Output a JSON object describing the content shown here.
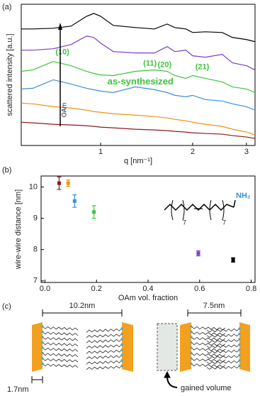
{
  "panels": {
    "a": "(a)",
    "b": "(b)",
    "c": "(c)"
  },
  "chart_data": [
    {
      "type": "line",
      "xscale": "log",
      "xlabel": "q [nm⁻¹]",
      "ylabel": "scattered intensity [a.u.]",
      "xlim": [
        0.55,
        3.2
      ],
      "ylim": [
        0,
        10
      ],
      "xticks": [
        1,
        2,
        3
      ],
      "x": [
        0.55,
        0.6,
        0.7,
        0.8,
        0.9,
        0.95,
        1.0,
        1.1,
        1.3,
        1.5,
        1.65,
        1.75,
        1.9,
        2.0,
        2.2,
        2.5,
        2.7,
        3.0,
        3.2
      ],
      "series": [
        {
          "color": "#000000",
          "values": [
            8.25,
            8.25,
            8.3,
            8.45,
            9.15,
            9.35,
            9.15,
            8.5,
            8.35,
            8.25,
            8.6,
            8.35,
            8.25,
            8.0,
            8.05,
            8.0,
            7.65,
            7.5,
            7.35
          ]
        },
        {
          "color": "#7b3fbf",
          "values": [
            6.75,
            6.75,
            6.85,
            7.15,
            7.75,
            7.65,
            7.25,
            6.65,
            6.55,
            6.55,
            7.0,
            6.65,
            6.75,
            6.35,
            6.25,
            6.45,
            5.85,
            5.65,
            5.35
          ]
        },
        {
          "color": "#3cc43c",
          "values": [
            5.25,
            5.35,
            5.95,
            5.65,
            5.25,
            5.1,
            5.0,
            4.95,
            5.25,
            5.35,
            5.25,
            4.95,
            4.75,
            4.95,
            4.75,
            4.5,
            4.15,
            4.0,
            3.75
          ]
        },
        {
          "color": "#3a8fd8",
          "values": [
            4.0,
            4.05,
            4.65,
            4.35,
            4.05,
            3.95,
            3.85,
            3.75,
            4.15,
            3.95,
            3.75,
            3.55,
            3.45,
            3.55,
            3.25,
            3.15,
            2.95,
            2.75,
            2.5
          ]
        },
        {
          "color": "#e8950f",
          "values": [
            3.0,
            2.95,
            2.75,
            2.65,
            2.5,
            2.4,
            2.35,
            2.25,
            2.15,
            2.05,
            1.95,
            1.85,
            1.75,
            1.65,
            1.5,
            1.35,
            1.15,
            0.95,
            0.75
          ]
        },
        {
          "color": "#8b1a1a",
          "values": [
            1.65,
            1.6,
            1.5,
            1.45,
            1.4,
            1.35,
            1.3,
            1.25,
            1.15,
            1.1,
            1.05,
            1.0,
            0.95,
            0.9,
            0.85,
            0.8,
            0.7,
            0.6,
            0.5
          ]
        }
      ],
      "annotations": [
        "(10)",
        "(11)",
        "(20)",
        "(21)",
        "as-synthesized",
        "OAm"
      ]
    },
    {
      "type": "scatter",
      "xlabel": "OAm vol. fraction",
      "ylabel": "wire-wire distance [nm]",
      "xlim": [
        -0.015,
        0.815
      ],
      "ylim": [
        6.95,
        10.35
      ],
      "xticks": [
        {
          "value": 0,
          "label": "0.0"
        },
        0.2,
        0.4,
        0.6,
        0.8
      ],
      "yticks": [
        7,
        8,
        9,
        10
      ],
      "x": [
        0.055,
        0.09,
        0.115,
        0.19,
        0.595,
        0.73
      ],
      "values": [
        10.12,
        10.12,
        9.55,
        9.2,
        7.88,
        7.67
      ],
      "errors": [
        0.2,
        0.1,
        0.2,
        0.2,
        0.08,
        0.07
      ],
      "colors": [
        "#8b1a1a",
        "#e8950f",
        "#3a8fd8",
        "#3cc43c",
        "#7b3fbf",
        "#000000"
      ],
      "structure": {
        "amine": "NH₂",
        "n1": "7",
        "n2": "7"
      }
    }
  ],
  "diagram": {
    "left_distance": "10.2nm",
    "right_distance": "7.5nm",
    "block_width": "1.7nm",
    "gained": "gained volume"
  }
}
